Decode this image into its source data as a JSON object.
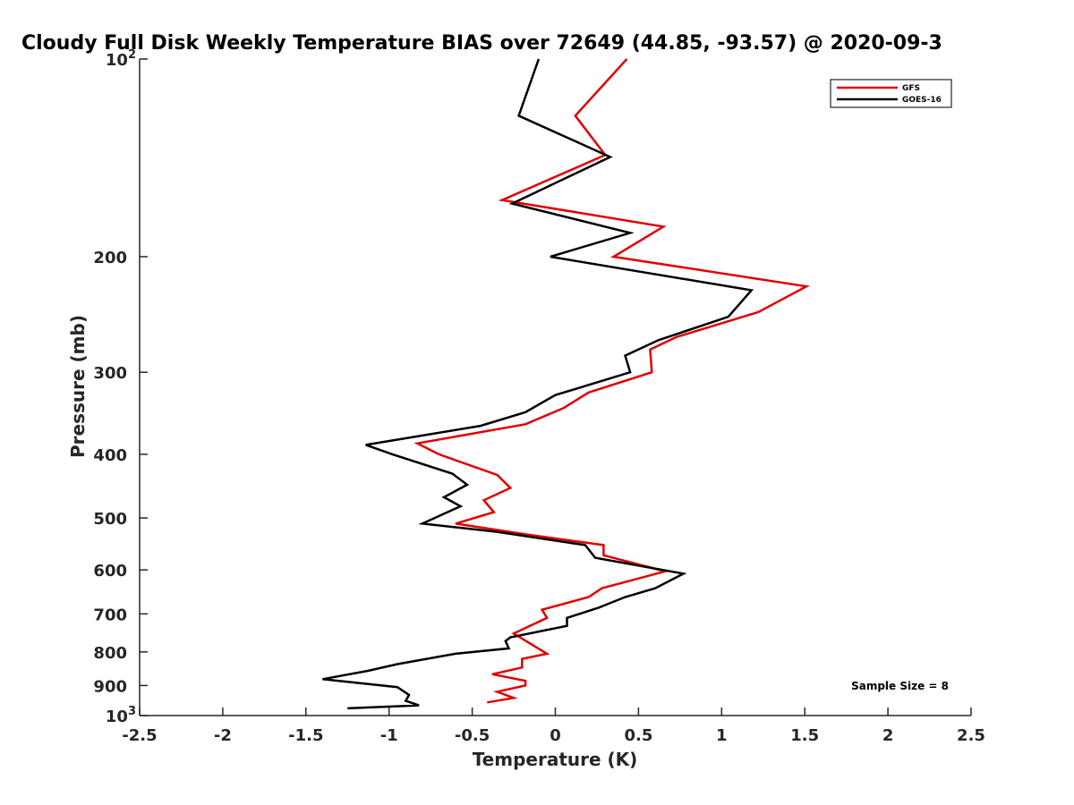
{
  "chart_data": {
    "type": "line",
    "title": "Cloudy Full Disk Weekly Temperature BIAS over 72649 (44.85, -93.57) @ 2020-09-3",
    "xlabel": "Temperature (K)",
    "ylabel": "Pressure (mb)",
    "xlim": [
      -2.5,
      2.5
    ],
    "ylim": [
      100,
      1000
    ],
    "y_scale": "log",
    "y_reversed": true,
    "x_ticks": [
      -2.5,
      -2,
      -1.5,
      -1,
      -0.5,
      0,
      0.5,
      1,
      1.5,
      2,
      2.5
    ],
    "x_tick_labels": [
      "-2.5",
      "-2",
      "-1.5",
      "-1",
      "-0.5",
      "0",
      "0.5",
      "1",
      "1.5",
      "2",
      "2.5"
    ],
    "y_ticks": [
      {
        "value": 100,
        "label": "10",
        "sup": "2"
      },
      {
        "value": 200,
        "label": "200",
        "sup": ""
      },
      {
        "value": 300,
        "label": "300",
        "sup": ""
      },
      {
        "value": 400,
        "label": "400",
        "sup": ""
      },
      {
        "value": 500,
        "label": "500",
        "sup": ""
      },
      {
        "value": 600,
        "label": "600",
        "sup": ""
      },
      {
        "value": 700,
        "label": "700",
        "sup": ""
      },
      {
        "value": 800,
        "label": "800",
        "sup": ""
      },
      {
        "value": 900,
        "label": "900",
        "sup": ""
      },
      {
        "value": 1000,
        "label": "10",
        "sup": "3"
      }
    ],
    "grid": false,
    "legend_position": "top-right",
    "annotation": "Sample Size = 8",
    "series": [
      {
        "name": "GFS",
        "color": "#e00000",
        "points": [
          [
            0.43,
            100
          ],
          [
            0.12,
            122
          ],
          [
            0.3,
            140
          ],
          [
            -0.32,
            164
          ],
          [
            0.65,
            180
          ],
          [
            0.35,
            200
          ],
          [
            1.51,
            222
          ],
          [
            1.22,
            243
          ],
          [
            0.73,
            265
          ],
          [
            0.57,
            277
          ],
          [
            0.58,
            300
          ],
          [
            0.2,
            322
          ],
          [
            0.05,
            340
          ],
          [
            -0.18,
            360
          ],
          [
            -0.83,
            385
          ],
          [
            -0.7,
            400
          ],
          [
            -0.35,
            430
          ],
          [
            -0.27,
            450
          ],
          [
            -0.43,
            470
          ],
          [
            -0.37,
            490
          ],
          [
            -0.6,
            510
          ],
          [
            -0.17,
            530
          ],
          [
            0.29,
            550
          ],
          [
            0.29,
            570
          ],
          [
            0.66,
            603
          ],
          [
            0.28,
            640
          ],
          [
            0.2,
            660
          ],
          [
            -0.08,
            690
          ],
          [
            -0.05,
            710
          ],
          [
            -0.25,
            750
          ],
          [
            -0.05,
            805
          ],
          [
            -0.2,
            820
          ],
          [
            -0.2,
            845
          ],
          [
            -0.38,
            865
          ],
          [
            -0.18,
            885
          ],
          [
            -0.18,
            900
          ],
          [
            -0.35,
            920
          ],
          [
            -0.25,
            940
          ],
          [
            -0.41,
            955
          ]
        ]
      },
      {
        "name": "GOES-16",
        "color": "#000000",
        "points": [
          [
            -0.1,
            100
          ],
          [
            -0.22,
            122
          ],
          [
            0.33,
            141
          ],
          [
            -0.26,
            166
          ],
          [
            0.45,
            184
          ],
          [
            -0.03,
            200
          ],
          [
            1.18,
            225
          ],
          [
            1.04,
            247
          ],
          [
            0.62,
            268
          ],
          [
            0.42,
            283
          ],
          [
            0.45,
            300
          ],
          [
            0.0,
            325
          ],
          [
            -0.18,
            345
          ],
          [
            -0.45,
            362
          ],
          [
            -1.14,
            387
          ],
          [
            -0.98,
            400
          ],
          [
            -0.62,
            428
          ],
          [
            -0.53,
            445
          ],
          [
            -0.67,
            465
          ],
          [
            -0.57,
            480
          ],
          [
            -0.8,
            510
          ],
          [
            -0.35,
            525
          ],
          [
            0.18,
            550
          ],
          [
            0.24,
            575
          ],
          [
            0.77,
            608
          ],
          [
            0.6,
            640
          ],
          [
            0.42,
            660
          ],
          [
            0.26,
            685
          ],
          [
            0.07,
            710
          ],
          [
            0.07,
            730
          ],
          [
            -0.27,
            760
          ],
          [
            -0.3,
            770
          ],
          [
            -0.28,
            790
          ],
          [
            -0.6,
            805
          ],
          [
            -0.95,
            835
          ],
          [
            -1.13,
            855
          ],
          [
            -1.4,
            880
          ],
          [
            -0.95,
            905
          ],
          [
            -0.88,
            930
          ],
          [
            -0.9,
            950
          ],
          [
            -0.82,
            965
          ],
          [
            -1.25,
            975
          ]
        ]
      }
    ]
  }
}
